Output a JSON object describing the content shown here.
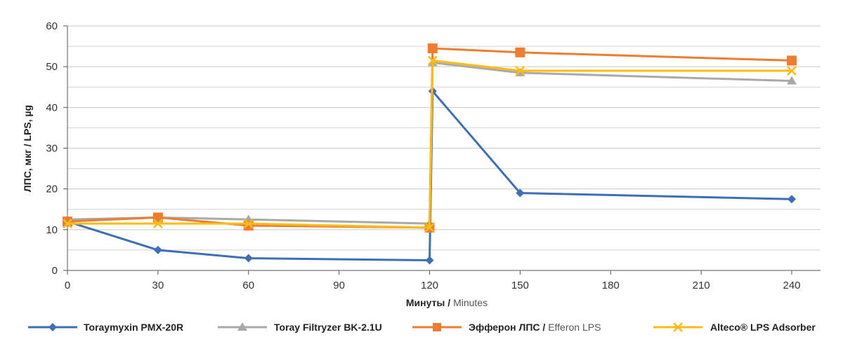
{
  "chart_data": {
    "type": "line",
    "ylabel": "ЛПС, мкг / LPS, µg",
    "xlabel_ru": "Минуты /",
    "xlabel_en": "Minutes",
    "x_ticks": [
      0,
      30,
      60,
      90,
      120,
      150,
      180,
      210,
      240
    ],
    "y_ticks": [
      0,
      10,
      20,
      30,
      40,
      50,
      60
    ],
    "xlim": [
      0,
      240
    ],
    "ylim": [
      0,
      60
    ],
    "grid": "horizontal",
    "legend_position": "bottom",
    "series": [
      {
        "name": "Toraymyxin PMX-20R",
        "color": "#3e6fb4",
        "marker": "diamond",
        "points": [
          [
            0,
            12
          ],
          [
            30,
            5
          ],
          [
            60,
            3
          ],
          [
            120,
            2.5
          ],
          [
            121,
            44
          ],
          [
            150,
            19
          ],
          [
            240,
            17.5
          ]
        ]
      },
      {
        "name": "Toray Filtryzer BK-2.1U",
        "color": "#a9a9a9",
        "marker": "triangle",
        "points": [
          [
            0,
            12.5
          ],
          [
            30,
            13
          ],
          [
            60,
            12.5
          ],
          [
            120,
            11.5
          ],
          [
            121,
            51
          ],
          [
            150,
            48.5
          ],
          [
            240,
            46.5
          ]
        ]
      },
      {
        "name_ru": "Эфферон ЛПС /",
        "name_en": "Efferon LPS",
        "color": "#ed7d31",
        "marker": "square",
        "points": [
          [
            0,
            12
          ],
          [
            30,
            13
          ],
          [
            60,
            11
          ],
          [
            120,
            10.5
          ],
          [
            121,
            54.5
          ],
          [
            150,
            53.5
          ],
          [
            240,
            51.5
          ]
        ]
      },
      {
        "name": "Alteco® LPS Adsorber",
        "color": "#fdbc15",
        "marker": "cross",
        "points": [
          [
            0,
            11.5
          ],
          [
            30,
            11.5
          ],
          [
            60,
            11.5
          ],
          [
            120,
            10.5
          ],
          [
            121,
            51.5
          ],
          [
            150,
            49
          ],
          [
            240,
            49
          ]
        ]
      }
    ]
  }
}
